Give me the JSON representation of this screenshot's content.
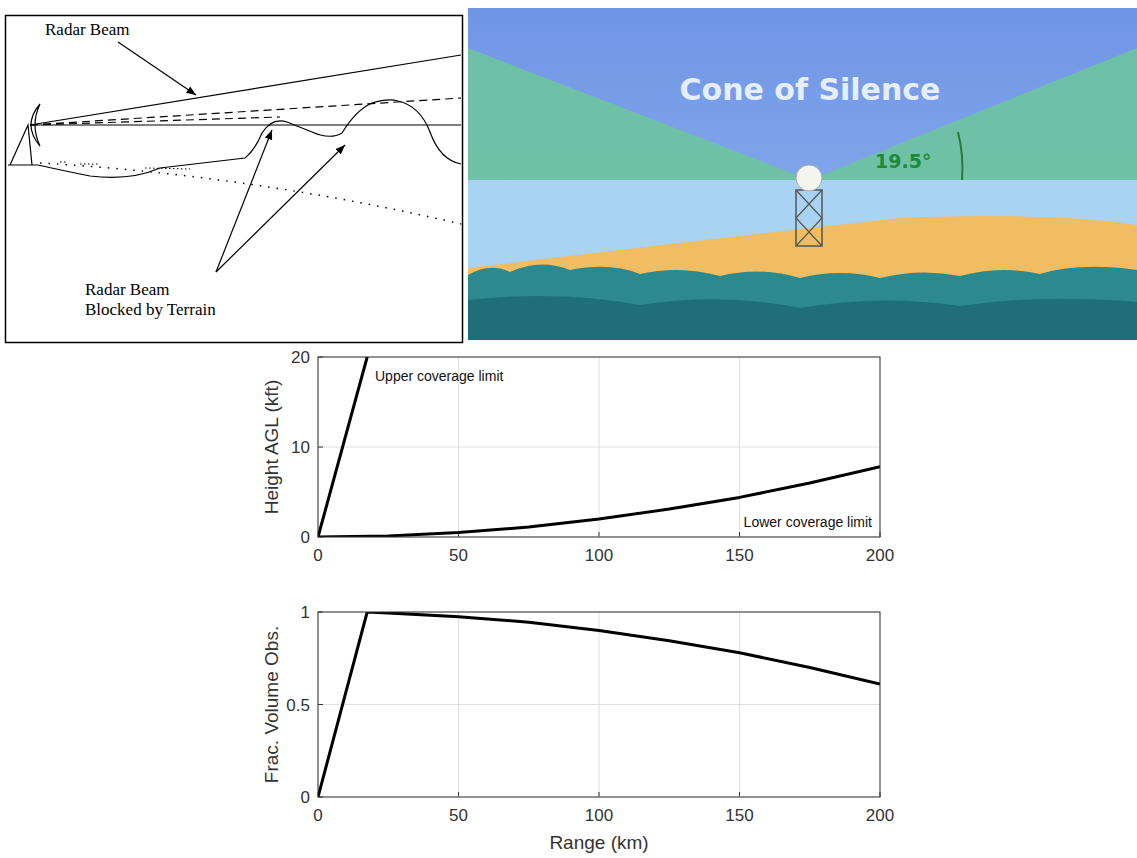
{
  "diagrams": {
    "beam_blockage": {
      "beam_label": "Radar Beam",
      "blocked_label": [
        "Radar Beam",
        "Blocked by Terrain"
      ]
    },
    "cone": {
      "title": "Cone of Silence",
      "angle_label": "19.5°"
    }
  },
  "chart_data": [
    {
      "type": "line",
      "ylabel": "Height AGL (kft)",
      "xlim": [
        0,
        200
      ],
      "xticks": [
        0,
        50,
        100,
        150,
        200
      ],
      "ylim": [
        0,
        20
      ],
      "yticks": [
        0,
        10,
        20
      ],
      "grid": true,
      "series": [
        {
          "name": "Upper coverage limit",
          "color": "#000000",
          "x": [
            0,
            17.5
          ],
          "values": [
            0,
            20
          ]
        },
        {
          "name": "Lower coverage limit",
          "color": "#000000",
          "x": [
            0,
            25,
            50,
            75,
            100,
            125,
            150,
            175,
            200
          ],
          "values": [
            0,
            0.12,
            0.5,
            1.1,
            2.0,
            3.1,
            4.4,
            6.0,
            7.8
          ]
        }
      ]
    },
    {
      "type": "line",
      "xlabel": "Range (km)",
      "ylabel": "Frac. Volume Obs.",
      "xlim": [
        0,
        200
      ],
      "xticks": [
        0,
        50,
        100,
        150,
        200
      ],
      "ylim": [
        0,
        1
      ],
      "yticks": [
        0,
        0.5,
        1
      ],
      "grid": true,
      "series": [
        {
          "color": "#000000",
          "x": [
            0,
            17.5,
            25,
            50,
            75,
            100,
            125,
            150,
            175,
            200
          ],
          "values": [
            0,
            1,
            0.995,
            0.975,
            0.945,
            0.9,
            0.845,
            0.78,
            0.7,
            0.61
          ]
        }
      ]
    }
  ]
}
